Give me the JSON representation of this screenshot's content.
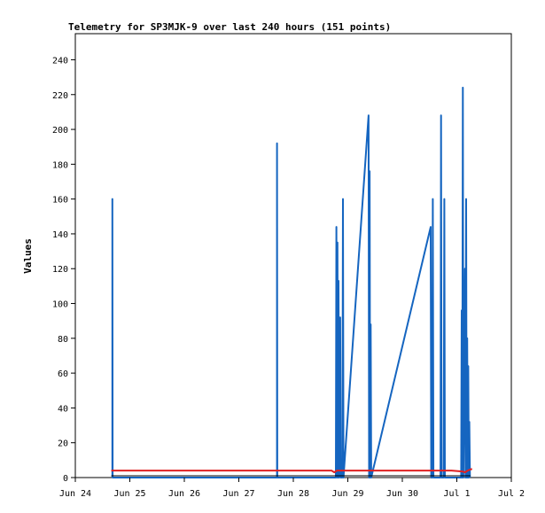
{
  "chart_data": {
    "type": "line",
    "title": "Telemetry for SP3MJK-9 over last 240 hours (151 points)",
    "xlabel": "",
    "ylabel": "Values",
    "x_ticks": [
      "Jun 24",
      "Jun 25",
      "Jun 26",
      "Jun 27",
      "Jun 28",
      "Jun 29",
      "Jun 30",
      "Jul 1",
      "Jul 2"
    ],
    "xlim": [
      0,
      8
    ],
    "ylim": [
      0,
      255
    ],
    "y_ticks": [
      0,
      20,
      40,
      60,
      80,
      100,
      120,
      140,
      160,
      180,
      200,
      220,
      240
    ],
    "grid": false,
    "legend": "none",
    "colors": {
      "series_blue": "#1565c0",
      "series_red": "#e02020",
      "series_black": "#000000"
    },
    "series": [
      {
        "color": "#1565c0",
        "points": [
          [
            0.68,
            0
          ],
          [
            0.68,
            160
          ],
          [
            0.685,
            0
          ],
          [
            3.7,
            0
          ],
          [
            3.7,
            192
          ],
          [
            3.705,
            0
          ],
          [
            4.78,
            0
          ],
          [
            4.79,
            144
          ],
          [
            4.8,
            0
          ],
          [
            4.81,
            135
          ],
          [
            4.82,
            0
          ],
          [
            4.83,
            113
          ],
          [
            4.84,
            0
          ],
          [
            4.86,
            92
          ],
          [
            4.87,
            0
          ],
          [
            4.9,
            0
          ],
          [
            4.91,
            160
          ],
          [
            4.92,
            0
          ],
          [
            5.38,
            208
          ],
          [
            5.39,
            0
          ],
          [
            5.4,
            176
          ],
          [
            5.41,
            0
          ],
          [
            5.42,
            88
          ],
          [
            5.43,
            0
          ],
          [
            6.52,
            144
          ],
          [
            6.53,
            0
          ],
          [
            6.55,
            0
          ],
          [
            6.56,
            160
          ],
          [
            6.57,
            0
          ],
          [
            6.7,
            0
          ],
          [
            6.71,
            208
          ],
          [
            6.72,
            0
          ],
          [
            6.76,
            0
          ],
          [
            6.77,
            160
          ],
          [
            6.78,
            0
          ],
          [
            7.08,
            0
          ],
          [
            7.09,
            96
          ],
          [
            7.1,
            0
          ],
          [
            7.11,
            224
          ],
          [
            7.12,
            0
          ],
          [
            7.15,
            120
          ],
          [
            7.16,
            0
          ],
          [
            7.17,
            160
          ],
          [
            7.18,
            0
          ],
          [
            7.19,
            80
          ],
          [
            7.2,
            0
          ],
          [
            7.21,
            64
          ],
          [
            7.22,
            0
          ],
          [
            7.23,
            32
          ],
          [
            7.24,
            0
          ]
        ]
      },
      {
        "color": "#e02020",
        "points": [
          [
            0.66,
            4
          ],
          [
            4.7,
            4
          ],
          [
            4.75,
            3
          ],
          [
            4.8,
            4
          ],
          [
            6.9,
            4
          ],
          [
            7.1,
            3.5
          ],
          [
            7.15,
            3
          ],
          [
            7.2,
            4
          ],
          [
            7.28,
            5
          ]
        ]
      },
      {
        "color": "#000000",
        "points": [
          [
            0.66,
            1
          ],
          [
            7.25,
            1
          ]
        ]
      }
    ]
  }
}
